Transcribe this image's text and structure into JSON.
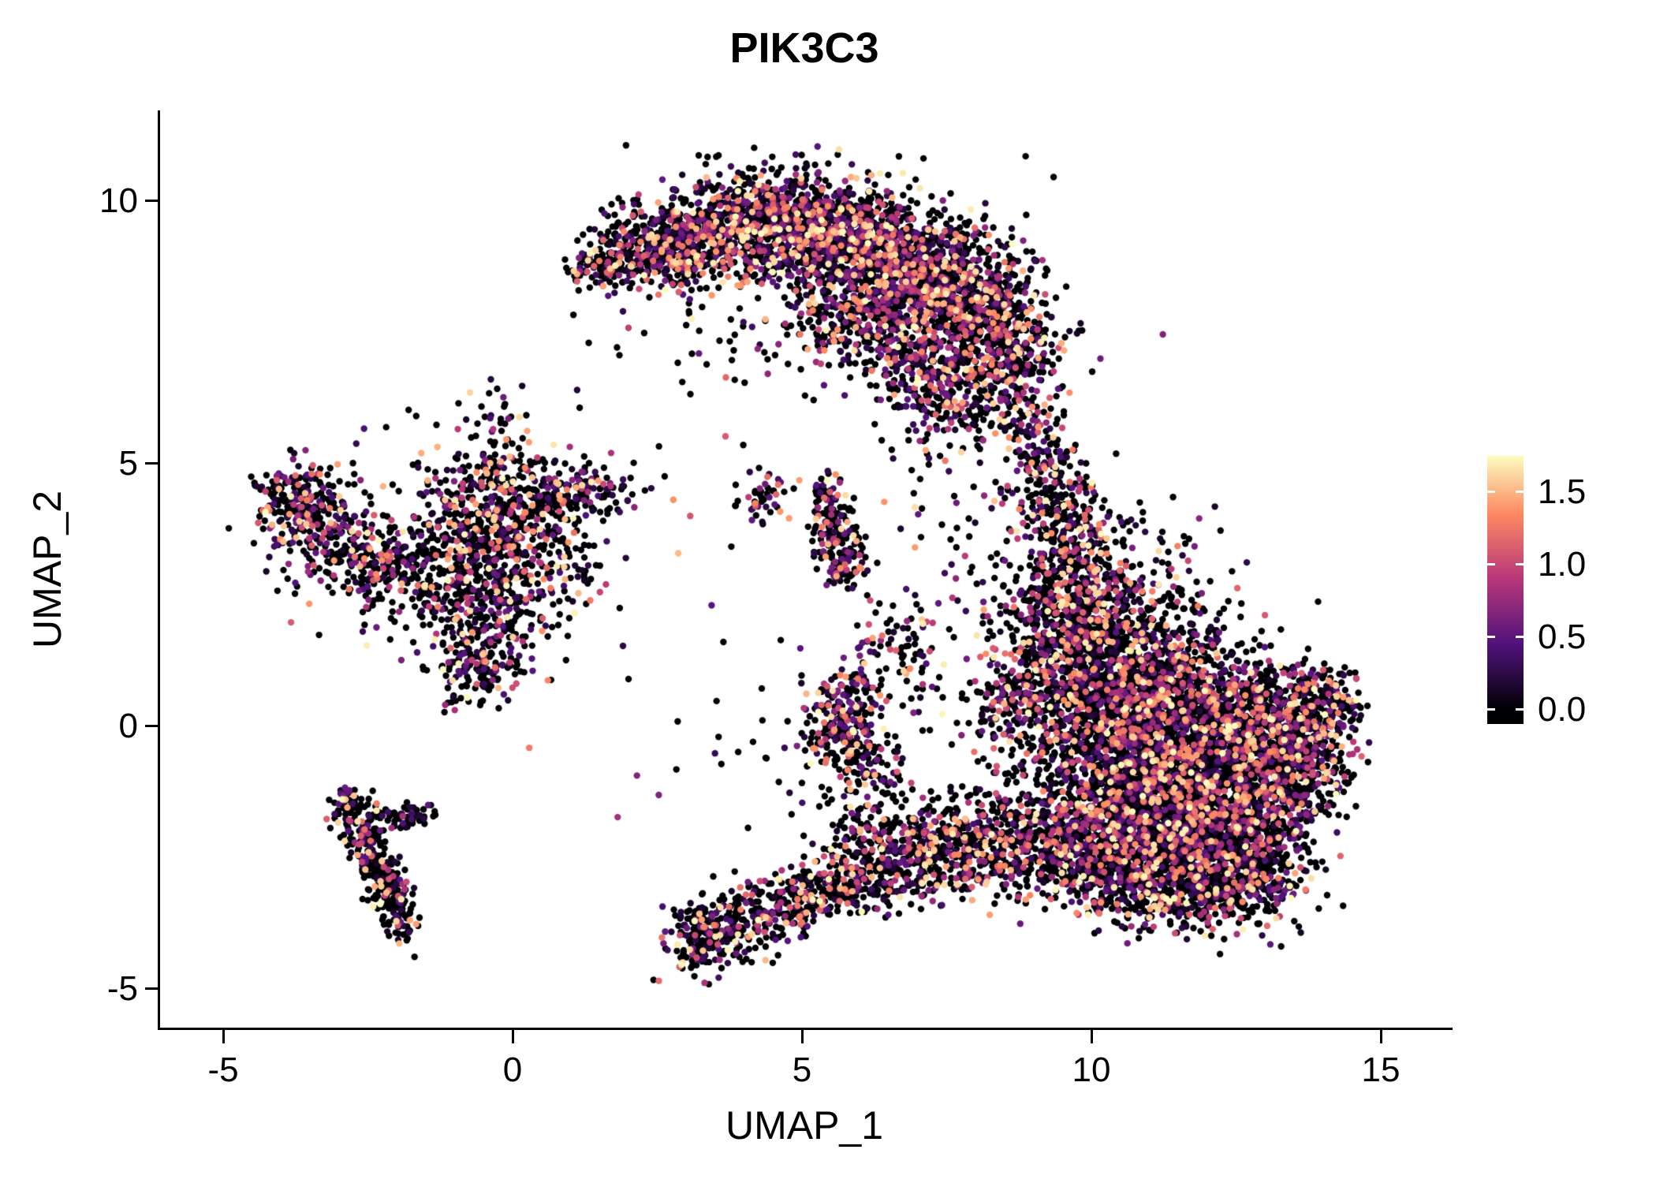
{
  "chart_data": {
    "type": "scatter",
    "title": "PIK3C3",
    "xlabel": "UMAP_1",
    "ylabel": "UMAP_2",
    "xlim": [
      -6.1,
      16.2
    ],
    "ylim": [
      -5.8,
      11.7
    ],
    "x_ticks": [
      "-5",
      "0",
      "5",
      "10",
      "15"
    ],
    "x_tick_values": [
      -5,
      0,
      5,
      10,
      15
    ],
    "y_ticks": [
      "10",
      "5",
      "0",
      "-5"
    ],
    "y_tick_values": [
      10,
      5,
      0,
      -5
    ],
    "grid": false,
    "background": "#FFFFFF",
    "point_shape": "filled-circle",
    "point_radius_px": 4.2,
    "value_range": [
      0,
      1.8
    ],
    "colormap": {
      "name": "magma",
      "stops": [
        [
          0.0,
          "#000004"
        ],
        [
          0.25,
          "#51127C"
        ],
        [
          0.5,
          "#B73779"
        ],
        [
          0.75,
          "#FC8961"
        ],
        [
          1.0,
          "#FCFDBF"
        ]
      ]
    },
    "legend": {
      "position": "right",
      "tick_labels_top_down": [
        "1.5",
        "1.0",
        "0.5",
        "0.0"
      ],
      "tick_values": [
        1.5,
        1.0,
        0.5,
        0.0
      ]
    },
    "seed": 42,
    "cluster_format": [
      "center_x",
      "center_y",
      "sd_x",
      "sd_y",
      "n_points",
      "colored_fraction"
    ],
    "clusters": [
      [
        1.4,
        8.7,
        0.25,
        0.2,
        40,
        0.45
      ],
      [
        2.2,
        8.95,
        0.5,
        0.35,
        260,
        0.45
      ],
      [
        3.1,
        9.3,
        0.55,
        0.45,
        380,
        0.45
      ],
      [
        4.2,
        9.55,
        0.6,
        0.45,
        480,
        0.45
      ],
      [
        5.3,
        9.45,
        0.6,
        0.5,
        560,
        0.45
      ],
      [
        6.3,
        9.05,
        0.6,
        0.55,
        560,
        0.45
      ],
      [
        7.2,
        8.5,
        0.6,
        0.6,
        520,
        0.45
      ],
      [
        8.0,
        8.0,
        0.55,
        0.6,
        420,
        0.45
      ],
      [
        8.7,
        7.2,
        0.45,
        0.6,
        300,
        0.45
      ],
      [
        6.0,
        7.9,
        0.8,
        0.5,
        280,
        0.45
      ],
      [
        7.0,
        6.9,
        0.6,
        0.5,
        240,
        0.45
      ],
      [
        7.7,
        6.1,
        0.45,
        0.45,
        150,
        0.45
      ],
      [
        5.2,
        8.6,
        1.8,
        1.0,
        220,
        0.4
      ],
      [
        8.9,
        5.6,
        0.35,
        0.5,
        90,
        0.4
      ],
      [
        9.2,
        4.8,
        0.3,
        0.45,
        80,
        0.4
      ],
      [
        9.5,
        4.0,
        0.4,
        0.5,
        130,
        0.4
      ],
      [
        9.7,
        3.2,
        0.5,
        0.5,
        190,
        0.4
      ],
      [
        9.9,
        2.3,
        0.55,
        0.5,
        240,
        0.4
      ],
      [
        10.2,
        1.4,
        0.6,
        0.5,
        300,
        0.38
      ],
      [
        10.9,
        2.6,
        0.8,
        0.8,
        130,
        0.38
      ],
      [
        11.6,
        1.6,
        0.7,
        0.6,
        110,
        0.38
      ],
      [
        9.0,
        1.9,
        0.45,
        0.5,
        150,
        0.4
      ],
      [
        9.3,
        0.8,
        0.5,
        0.5,
        210,
        0.4
      ],
      [
        8.6,
        0.3,
        0.4,
        0.45,
        120,
        0.38
      ],
      [
        10.4,
        0.5,
        0.7,
        0.65,
        480,
        0.36
      ],
      [
        11.4,
        0.4,
        0.8,
        0.65,
        580,
        0.36
      ],
      [
        12.4,
        0.2,
        0.7,
        0.6,
        500,
        0.36
      ],
      [
        13.3,
        0.1,
        0.5,
        0.5,
        340,
        0.36
      ],
      [
        14.1,
        0.4,
        0.3,
        0.35,
        130,
        0.36
      ],
      [
        13.8,
        -0.6,
        0.4,
        0.45,
        170,
        0.36
      ],
      [
        10.3,
        -0.8,
        0.7,
        0.6,
        500,
        0.36
      ],
      [
        11.3,
        -1.0,
        0.8,
        0.65,
        580,
        0.36
      ],
      [
        12.3,
        -1.1,
        0.7,
        0.6,
        520,
        0.36
      ],
      [
        13.2,
        -1.3,
        0.5,
        0.5,
        320,
        0.36
      ],
      [
        10.6,
        -2.0,
        0.7,
        0.55,
        430,
        0.36
      ],
      [
        11.6,
        -2.2,
        0.7,
        0.55,
        470,
        0.36
      ],
      [
        12.5,
        -2.4,
        0.6,
        0.5,
        380,
        0.36
      ],
      [
        10.9,
        -3.0,
        0.6,
        0.45,
        280,
        0.36
      ],
      [
        11.9,
        -3.2,
        0.6,
        0.4,
        230,
        0.36
      ],
      [
        12.8,
        -3.0,
        0.45,
        0.4,
        140,
        0.36
      ],
      [
        9.9,
        -2.4,
        0.5,
        0.55,
        230,
        0.36
      ],
      [
        9.3,
        -2.1,
        0.55,
        0.6,
        240,
        0.36
      ],
      [
        8.5,
        -2.2,
        0.5,
        0.5,
        190,
        0.36
      ],
      [
        7.8,
        -2.4,
        0.5,
        0.45,
        170,
        0.38
      ],
      [
        7.0,
        -2.6,
        0.5,
        0.4,
        150,
        0.38
      ],
      [
        6.3,
        -2.8,
        0.5,
        0.4,
        130,
        0.38
      ],
      [
        5.6,
        -3.0,
        0.45,
        0.35,
        120,
        0.38
      ],
      [
        5.0,
        -3.3,
        0.4,
        0.3,
        100,
        0.38
      ],
      [
        4.4,
        -3.6,
        0.4,
        0.3,
        100,
        0.38
      ],
      [
        3.8,
        -3.9,
        0.35,
        0.3,
        120,
        0.4
      ],
      [
        3.25,
        -4.05,
        0.3,
        0.35,
        150,
        0.4
      ],
      [
        5.9,
        -2.2,
        0.3,
        0.4,
        60,
        0.38
      ],
      [
        5.6,
        -0.1,
        0.35,
        0.45,
        150,
        0.4
      ],
      [
        6.0,
        -0.55,
        0.3,
        0.4,
        100,
        0.4
      ],
      [
        5.85,
        0.6,
        0.3,
        0.3,
        60,
        0.4
      ],
      [
        6.25,
        1.5,
        0.3,
        0.5,
        40,
        0.4
      ],
      [
        6.9,
        1.9,
        0.25,
        0.35,
        28,
        0.4
      ],
      [
        7.05,
        0.9,
        0.3,
        0.4,
        30,
        0.4
      ],
      [
        6.6,
        -1.5,
        0.4,
        0.5,
        60,
        0.38
      ],
      [
        7.3,
        -2.1,
        0.4,
        0.45,
        70,
        0.38
      ],
      [
        4.35,
        4.35,
        0.28,
        0.22,
        48,
        0.45
      ],
      [
        5.4,
        4.45,
        0.15,
        0.2,
        36,
        0.45
      ],
      [
        5.5,
        3.9,
        0.2,
        0.28,
        60,
        0.45
      ],
      [
        5.65,
        3.4,
        0.2,
        0.28,
        70,
        0.45
      ],
      [
        5.72,
        3.05,
        0.22,
        0.2,
        50,
        0.45
      ],
      [
        -3.55,
        4.15,
        0.45,
        0.4,
        170,
        0.38
      ],
      [
        -3.9,
        4.3,
        0.25,
        0.3,
        60,
        0.4
      ],
      [
        -2.95,
        3.45,
        0.5,
        0.45,
        150,
        0.38
      ],
      [
        -2.25,
        3.1,
        0.45,
        0.4,
        110,
        0.35
      ],
      [
        -1.45,
        2.7,
        0.55,
        0.5,
        90,
        0.35
      ],
      [
        -0.7,
        3.2,
        0.55,
        0.6,
        240,
        0.38
      ],
      [
        -0.5,
        4.2,
        0.5,
        0.5,
        210,
        0.38
      ],
      [
        -0.3,
        2.2,
        0.45,
        0.5,
        170,
        0.38
      ],
      [
        -0.65,
        1.15,
        0.4,
        0.4,
        150,
        0.4
      ],
      [
        0.3,
        3.9,
        0.55,
        0.5,
        140,
        0.38
      ],
      [
        0.9,
        4.4,
        0.5,
        0.35,
        110,
        0.38
      ],
      [
        0.6,
        2.9,
        0.5,
        0.5,
        90,
        0.35
      ],
      [
        -1.2,
        3.3,
        1.4,
        1.2,
        140,
        0.3
      ],
      [
        -0.25,
        5.3,
        0.3,
        0.4,
        55,
        0.4
      ],
      [
        1.5,
        4.55,
        0.4,
        0.25,
        55,
        0.38
      ],
      [
        -2.85,
        -1.55,
        0.15,
        0.22,
        55,
        0.3
      ],
      [
        -2.62,
        -2.05,
        0.15,
        0.25,
        65,
        0.3
      ],
      [
        -2.4,
        -2.5,
        0.15,
        0.25,
        65,
        0.3
      ],
      [
        -2.2,
        -2.9,
        0.15,
        0.25,
        60,
        0.3
      ],
      [
        -2.02,
        -3.3,
        0.14,
        0.25,
        55,
        0.3
      ],
      [
        -1.9,
        -3.7,
        0.13,
        0.22,
        45,
        0.3
      ],
      [
        -2.1,
        -1.8,
        0.3,
        0.14,
        45,
        0.3
      ],
      [
        -1.62,
        -1.72,
        0.2,
        0.12,
        28,
        0.3
      ],
      [
        4.6,
        1.2,
        2.2,
        1.6,
        22,
        0.3
      ],
      [
        7.8,
        4.3,
        1.1,
        0.9,
        40,
        0.35
      ],
      [
        8.3,
        3.2,
        0.8,
        0.8,
        40,
        0.35
      ],
      [
        2.4,
        6.9,
        1.1,
        0.8,
        18,
        0.3
      ],
      [
        4.9,
        -1.5,
        1.2,
        0.8,
        25,
        0.3
      ]
    ]
  }
}
